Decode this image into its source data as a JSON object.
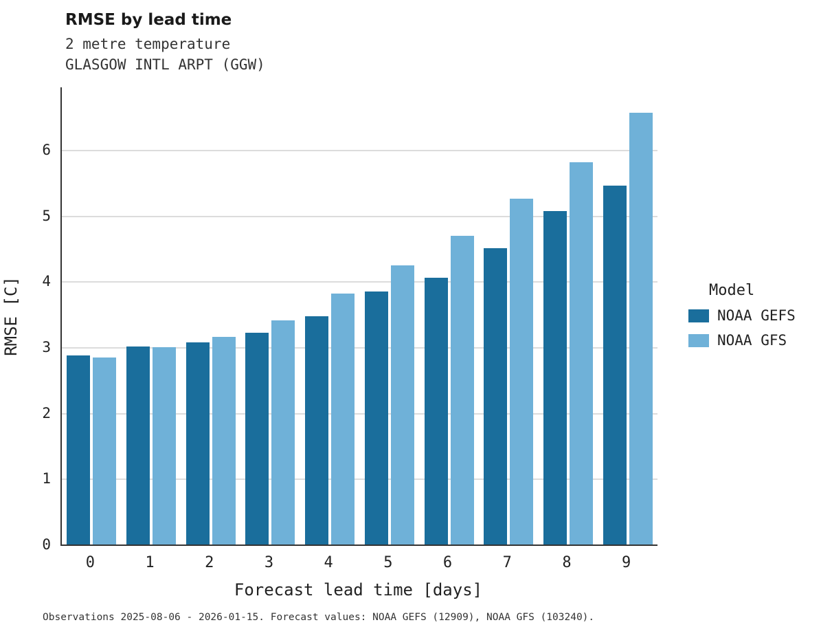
{
  "title": "RMSE by lead time",
  "subtitle_line1": "2 metre temperature",
  "subtitle_line2": "GLASGOW INTL ARPT (GGW)",
  "caption": "Observations 2025-08-06 - 2026-01-15. Forecast values: NOAA GEFS (12909), NOAA GFS (103240).",
  "legend": {
    "title": "Model",
    "entries": [
      {
        "label": "NOAA GEFS",
        "color": "#1a6e9c"
      },
      {
        "label": "NOAA GFS",
        "color": "#6fb1d8"
      }
    ]
  },
  "colors": {
    "gefs": "#1a6e9c",
    "gfs": "#6fb1d8",
    "grid": "#dcdcdc",
    "axis": "#333333"
  },
  "chart_data": {
    "type": "bar",
    "title": "RMSE by lead time",
    "subtitle": "2 metre temperature — GLASGOW INTL ARPT (GGW)",
    "xlabel": "Forecast lead time [days]",
    "ylabel": "RMSE [C]",
    "categories": [
      "0",
      "1",
      "2",
      "3",
      "4",
      "5",
      "6",
      "7",
      "8",
      "9"
    ],
    "series": [
      {
        "name": "NOAA GEFS",
        "color": "#1a6e9c",
        "values": [
          2.87,
          3.01,
          3.07,
          3.22,
          3.47,
          3.85,
          4.05,
          4.5,
          5.07,
          5.46
        ]
      },
      {
        "name": "NOAA GFS",
        "color": "#6fb1d8",
        "values": [
          2.84,
          3.0,
          3.16,
          3.41,
          3.82,
          4.24,
          4.69,
          5.26,
          5.81,
          6.56
        ]
      }
    ],
    "ylim": [
      0,
      6.95
    ],
    "yticks": [
      0,
      1,
      2,
      3,
      4,
      5,
      6
    ],
    "grid": "horizontal",
    "legend_position": "right"
  }
}
